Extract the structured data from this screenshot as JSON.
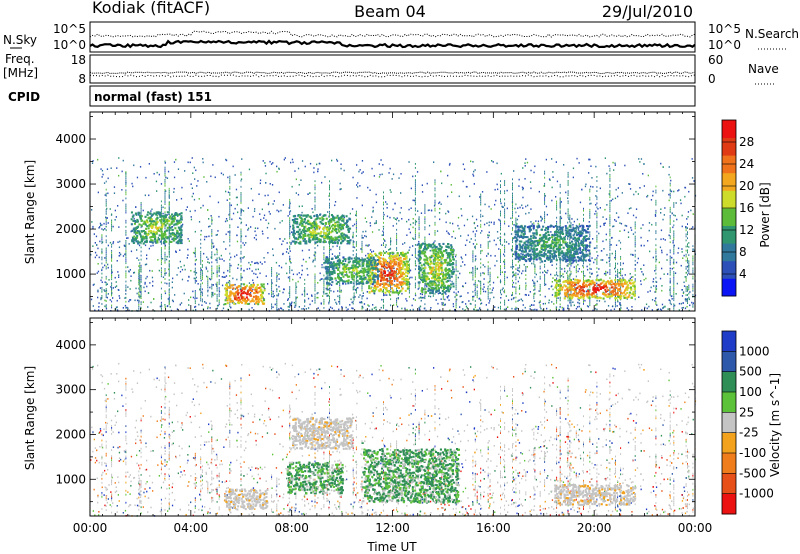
{
  "header": {
    "station": "Kodiak (fitACF)",
    "beam": "Beam 04",
    "date": "29/Jul/2010"
  },
  "noise_panel": {
    "left_label": "N.Sky",
    "right_label": "N.Search",
    "left_ticks": [
      "10^5",
      "10^0"
    ],
    "right_ticks": [
      "10^5",
      "10^0"
    ]
  },
  "freq_panel": {
    "left_label_line1": "Freq.",
    "left_label_line2": "[MHz]",
    "right_label": "Nave",
    "left_ticks": [
      "18",
      "8"
    ],
    "right_ticks": [
      "60",
      "0"
    ]
  },
  "cpid": {
    "label": "CPID",
    "value": "normal (fast) 151"
  },
  "chart_data": [
    {
      "type": "heatmap",
      "name": "power",
      "ylabel": "Slant Range [km]",
      "ylim": [
        180,
        4600
      ],
      "yticks": [
        1000,
        2000,
        3000,
        4000
      ],
      "xlim_hours": [
        0,
        24
      ],
      "colorbar": {
        "label": "Power [dB]",
        "range": [
          0,
          32
        ],
        "ticks": [
          "4",
          "8",
          "12",
          "16",
          "20",
          "24",
          "28"
        ],
        "colors": [
          "#0a14f5",
          "#2c4fb8",
          "#31799c",
          "#2f9670",
          "#5cbc3a",
          "#cddb2b",
          "#f3a71e",
          "#f0721a",
          "#e03a14",
          "#ec1212"
        ]
      },
      "features": [
        {
          "t0": 5.3,
          "t1": 6.9,
          "r0": 350,
          "r1": 800,
          "level": 0.92
        },
        {
          "t0": 11.0,
          "t1": 12.6,
          "r0": 600,
          "r1": 1500,
          "level": 0.85
        },
        {
          "t0": 18.4,
          "t1": 21.6,
          "r0": 480,
          "r1": 900,
          "level": 0.9
        },
        {
          "t0": 13.0,
          "t1": 14.4,
          "r0": 600,
          "r1": 1700,
          "level": 0.55
        },
        {
          "t0": 8.0,
          "t1": 10.3,
          "r0": 1700,
          "r1": 2350,
          "level": 0.5
        },
        {
          "t0": 1.6,
          "t1": 3.6,
          "r0": 1700,
          "r1": 2400,
          "level": 0.5
        },
        {
          "t0": 9.3,
          "t1": 11.4,
          "r0": 800,
          "r1": 1400,
          "level": 0.45
        },
        {
          "t0": 16.8,
          "t1": 19.8,
          "r0": 1300,
          "r1": 2100,
          "level": 0.35
        }
      ]
    },
    {
      "type": "heatmap",
      "name": "velocity",
      "ylabel": "Slant Range [km]",
      "ylim": [
        180,
        4600
      ],
      "yticks": [
        1000,
        2000,
        3000,
        4000
      ],
      "xlim_hours": [
        0,
        24
      ],
      "xticks": [
        "00:00",
        "04:00",
        "08:00",
        "12:00",
        "16:00",
        "20:00",
        "00:00"
      ],
      "xlabel": "Time UT",
      "colorbar": {
        "label": "Velocity [m s^-1]",
        "ticks": [
          "1000",
          "500",
          "100",
          "25",
          "-25",
          "-100",
          "-500",
          "-1000"
        ],
        "colors": [
          "#1e3cc8",
          "#2e58aa",
          "#2e8e55",
          "#5cc23a",
          "#c4c4c4",
          "#f2a21c",
          "#f07d1c",
          "#e8501a",
          "#ec1212"
        ]
      },
      "features": [
        {
          "t0": 5.3,
          "t1": 7.0,
          "r0": 350,
          "r1": 800,
          "class": "ground-scatter"
        },
        {
          "t0": 10.8,
          "t1": 14.6,
          "r0": 500,
          "r1": 1700,
          "class": "positive"
        },
        {
          "t0": 18.4,
          "t1": 21.6,
          "r0": 450,
          "r1": 900,
          "class": "ground-scatter"
        },
        {
          "t0": 8.0,
          "t1": 10.4,
          "r0": 1700,
          "r1": 2400,
          "class": "ground-scatter"
        },
        {
          "t0": 7.8,
          "t1": 10.0,
          "r0": 700,
          "r1": 1400,
          "class": "positive"
        }
      ]
    }
  ]
}
